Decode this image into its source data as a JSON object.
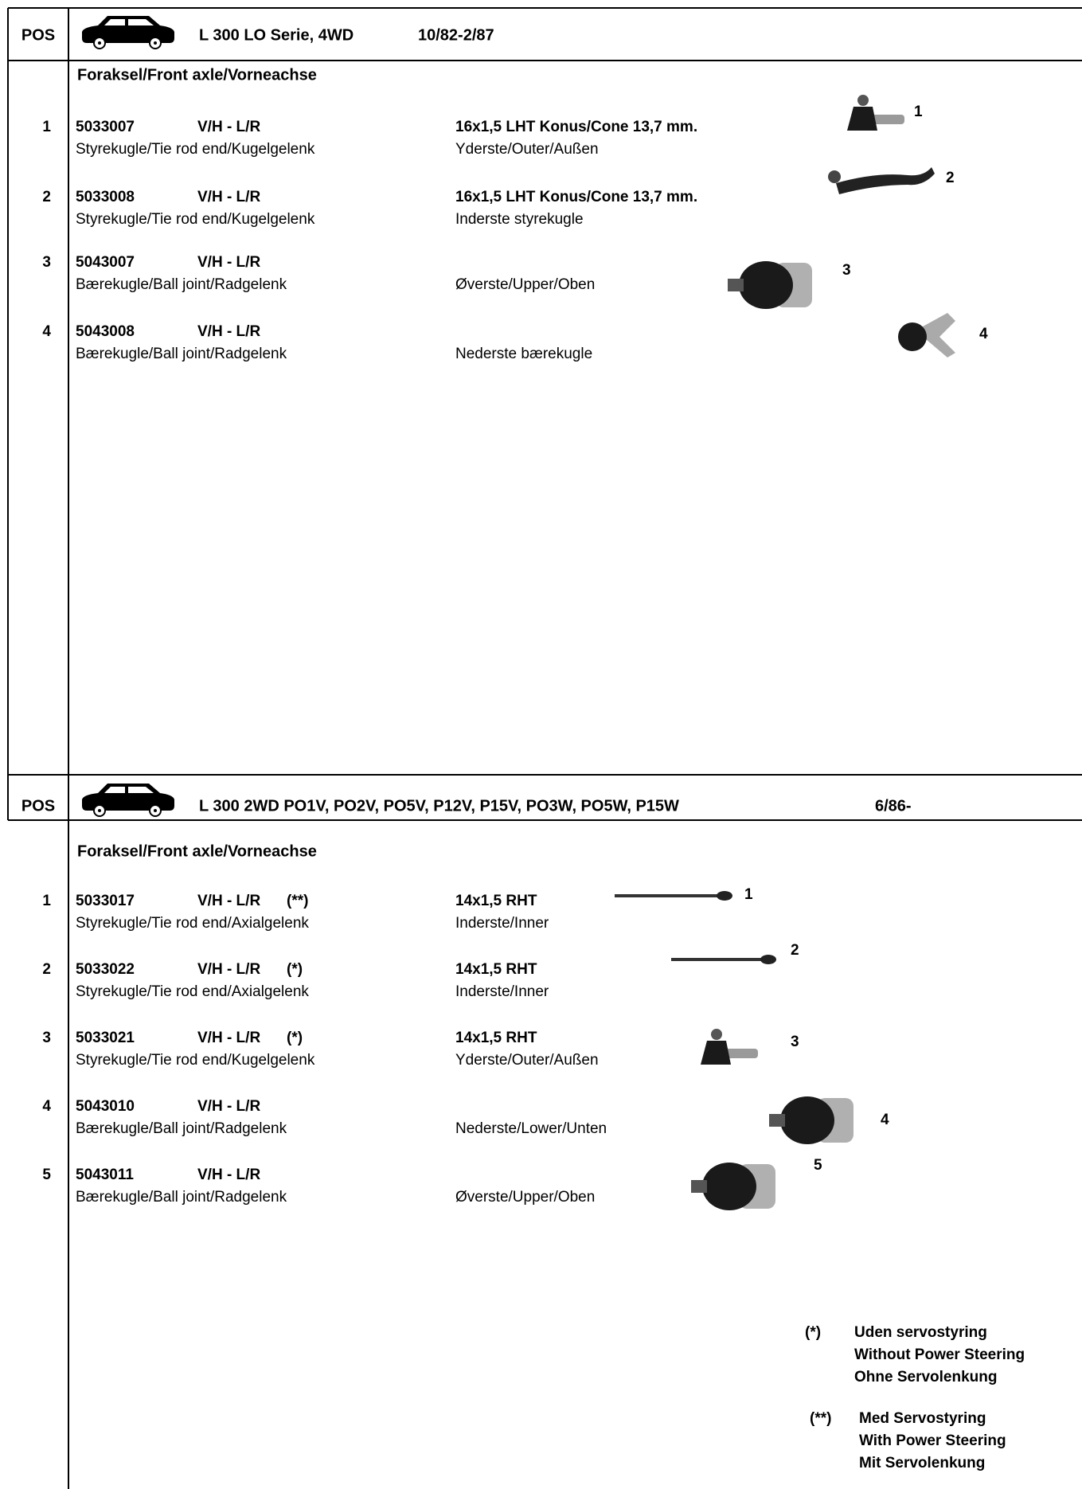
{
  "sections": [
    {
      "pos_label": "POS",
      "title": "L 300 LO Serie, 4WD",
      "period": "10/82-2/87",
      "subtitle": "Foraksel/Front axle/Vorneachse",
      "items": [
        {
          "pos": "1",
          "part": "5033007",
          "side": "V/H - L/R",
          "spec": "16x1,5  LHT  Konus/Cone 13,7 mm.",
          "desc": "Styrekugle/Tie rod end/Kugelgelenk",
          "note": "Yderste/Outer/Außen",
          "image_label": "1"
        },
        {
          "pos": "2",
          "part": "5033008",
          "side": "V/H - L/R",
          "spec": "16x1,5  LHT  Konus/Cone 13,7 mm.",
          "desc": "Styrekugle/Tie rod end/Kugelgelenk",
          "note": "Inderste styrekugle",
          "image_label": "2"
        },
        {
          "pos": "3",
          "part": "5043007",
          "side": "V/H - L/R",
          "desc": "Bærekugle/Ball joint/Radgelenk",
          "note": "Øverste/Upper/Oben",
          "image_label": "3"
        },
        {
          "pos": "4",
          "part": "5043008",
          "side": "V/H - L/R",
          "desc": "Bærekugle/Ball joint/Radgelenk",
          "note": "Nederste bærekugle",
          "image_label": "4"
        }
      ]
    },
    {
      "pos_label": "POS",
      "title": "L 300 2WD PO1V, PO2V, PO5V, P12V, P15V, PO3W, PO5W, P15W",
      "period": "6/86-",
      "subtitle": "Foraksel/Front axle/Vorneachse",
      "items": [
        {
          "pos": "1",
          "part": "5033017",
          "side": "V/H - L/R",
          "flag": "(**)",
          "spec": "14x1,5  RHT",
          "desc": "Styrekugle/Tie rod end/Axialgelenk",
          "note": "Inderste/Inner",
          "image_label": "1"
        },
        {
          "pos": "2",
          "part": "5033022",
          "side": "V/H - L/R",
          "flag": "(*)",
          "spec": "14x1,5  RHT",
          "desc": "Styrekugle/Tie rod end/Axialgelenk",
          "note": "Inderste/Inner",
          "image_label": "2"
        },
        {
          "pos": "3",
          "part": "5033021",
          "side": "V/H - L/R",
          "flag": "(*)",
          "spec": "14x1,5  RHT",
          "desc": "Styrekugle/Tie rod end/Kugelgelenk",
          "note": "Yderste/Outer/Außen",
          "image_label": "3"
        },
        {
          "pos": "4",
          "part": "5043010",
          "side": "V/H - L/R",
          "desc": "Bærekugle/Ball joint/Radgelenk",
          "note": "Nederste/Lower/Unten",
          "image_label": "4"
        },
        {
          "pos": "5",
          "part": "5043011",
          "side": "V/H - L/R",
          "desc": "Bærekugle/Ball joint/Radgelenk",
          "note": "Øverste/Upper/Oben",
          "image_label": "5"
        }
      ]
    }
  ],
  "footnotes": [
    {
      "mark": "(*)",
      "lines": [
        "Uden servostyring",
        "Without Power Steering",
        "Ohne Servolenkung"
      ]
    },
    {
      "mark": "(**)",
      "lines": [
        "Med Servostyring",
        "With Power Steering",
        "Mit Servolenkung"
      ]
    }
  ]
}
